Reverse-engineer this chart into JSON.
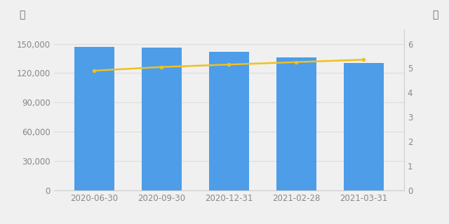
{
  "categories": [
    "2020-06-30",
    "2020-09-30",
    "2020-12-31",
    "2021-02-28",
    "2021-03-31"
  ],
  "bar_values": [
    147000,
    146000,
    142000,
    136000,
    130000
  ],
  "line_values": [
    4.9,
    5.05,
    5.15,
    5.25,
    5.35
  ],
  "bar_color": "#4d9de8",
  "line_color": "#f0c020",
  "left_ylabel": "户",
  "right_ylabel": "元",
  "left_ylim": [
    0,
    165000
  ],
  "right_ylim": [
    0,
    6.6
  ],
  "left_yticks": [
    0,
    30000,
    60000,
    90000,
    120000,
    150000
  ],
  "right_yticks": [
    0,
    1,
    2,
    3,
    4,
    5,
    6
  ],
  "background_color": "#f0f0f0",
  "plot_bg_color": "#f0f0f0",
  "bar_width": 0.6,
  "marker": "o",
  "marker_size": 4,
  "tick_color": "#888888",
  "tick_fontsize": 8.5,
  "grid_color": "#dddddd"
}
